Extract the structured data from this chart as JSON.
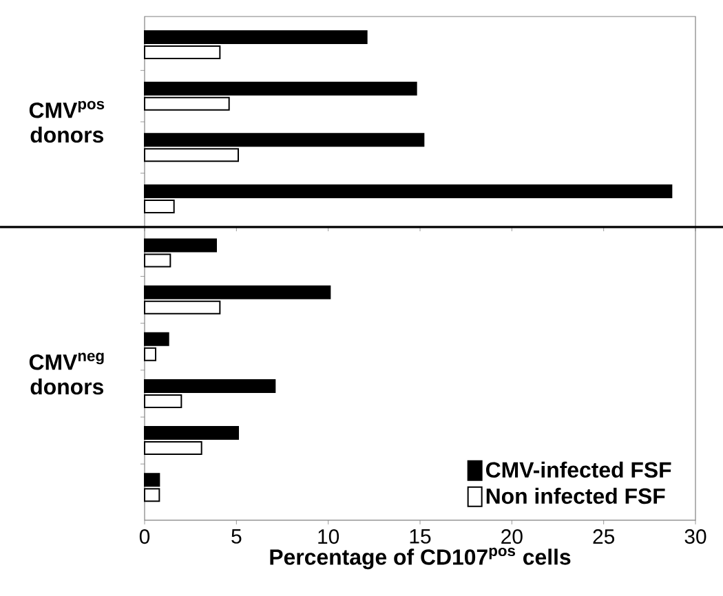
{
  "chart_data": [
    {
      "type": "bar",
      "orientation": "horizontal",
      "ylabel": "CMV$^{pos}$ donors",
      "categories": [
        null,
        null,
        null,
        null
      ],
      "series": [
        {
          "color": "#000000",
          "values": [
            12.1,
            14.8,
            15.2,
            28.7
          ]
        },
        {
          "color": "#ffffff",
          "values": [
            4.1,
            4.6,
            5.1,
            1.6
          ]
        }
      ],
      "xlim": [
        0,
        30
      ],
      "xticks": [
        0,
        5,
        10,
        15,
        20,
        25,
        30
      ],
      "tick_labels": false
    },
    {
      "type": "bar",
      "orientation": "horizontal",
      "ylabel": "CMV$^{neg}$ donors",
      "xlabel": "Percentage of CD107$^{pos}$ cells",
      "categories": [
        null,
        null,
        null,
        null,
        null,
        null
      ],
      "series": [
        {
          "name": "CMV-infected FSF",
          "color": "#000000",
          "values": [
            3.9,
            10.1,
            1.3,
            7.1,
            5.1,
            0.8
          ]
        },
        {
          "name": "Non infected FSF",
          "color": "#ffffff",
          "values": [
            1.4,
            4.1,
            0.6,
            2.0,
            3.1,
            0.8
          ]
        }
      ],
      "xlim": [
        0,
        30
      ],
      "xticks": [
        0,
        5,
        10,
        15,
        20,
        25,
        30
      ],
      "tick_labels": "x",
      "legend": "bottom right"
    }
  ]
}
